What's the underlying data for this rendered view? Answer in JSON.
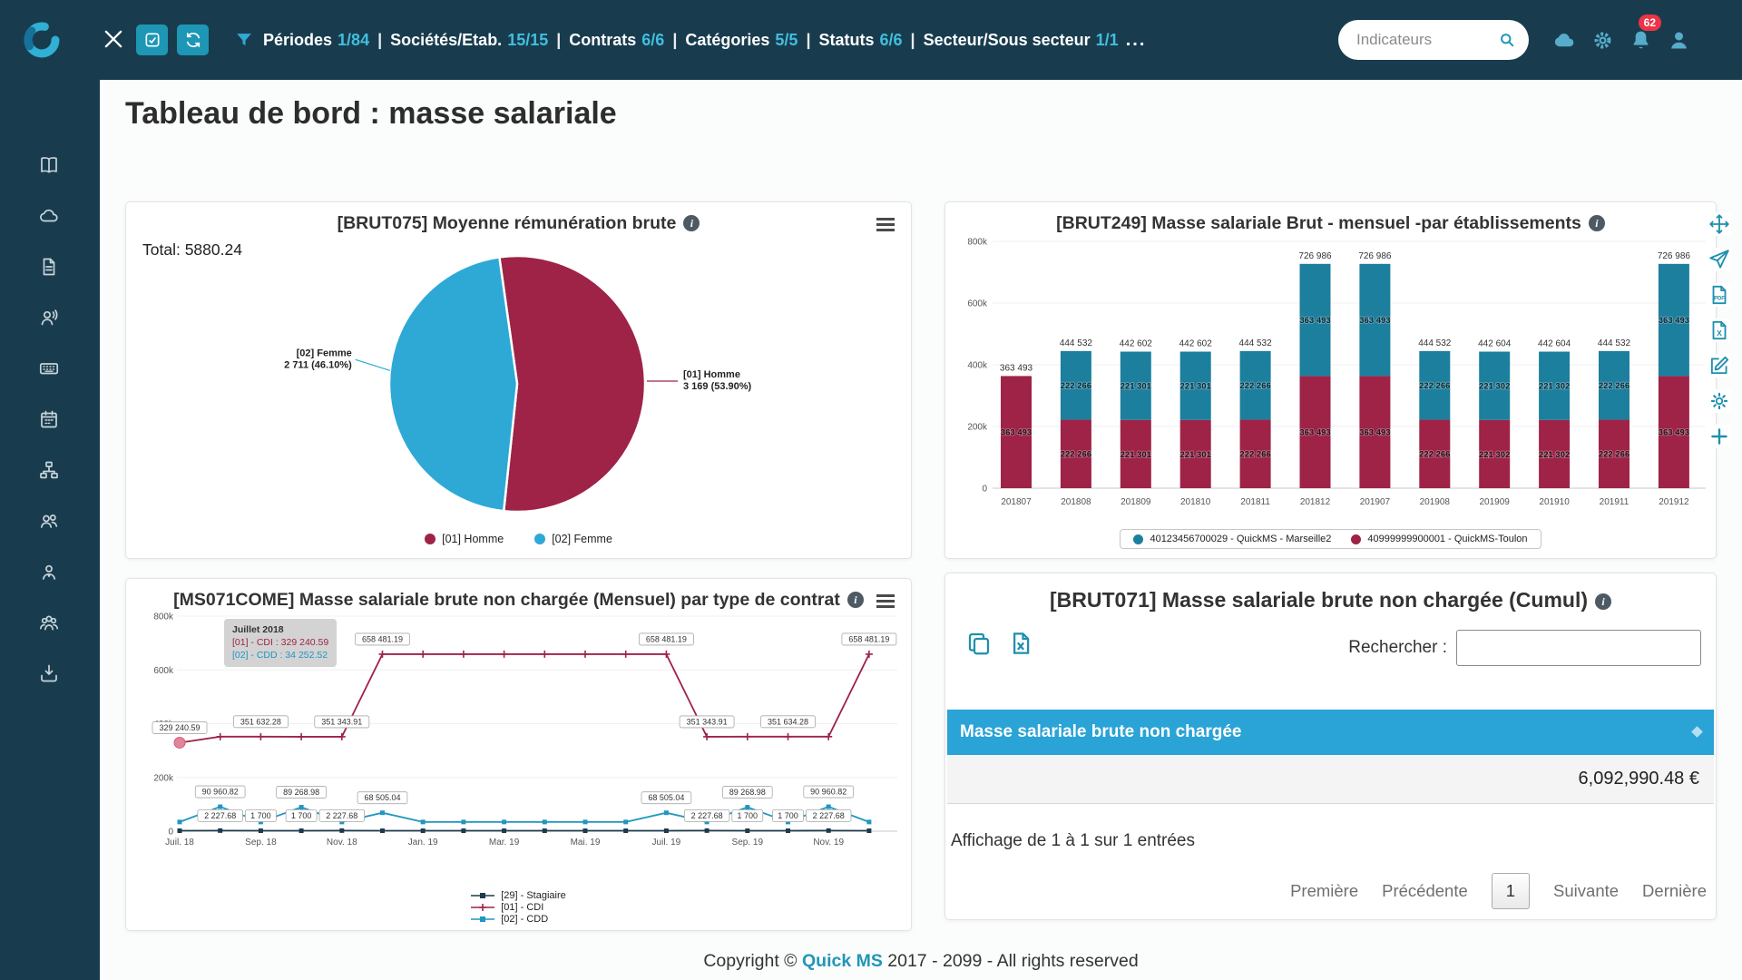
{
  "navbar": {
    "filters": [
      {
        "label": "Périodes",
        "value": "1/84"
      },
      {
        "label": "Sociétés/Etab.",
        "value": "15/15"
      },
      {
        "label": "Contrats",
        "value": "6/6"
      },
      {
        "label": "Catégories",
        "value": "5/5"
      },
      {
        "label": "Statuts",
        "value": "6/6"
      },
      {
        "label": "Secteur/Sous secteur",
        "value": "1/1"
      }
    ],
    "more_label": "...",
    "search_placeholder": "Indicateurs",
    "badge": "62"
  },
  "sidebar": {
    "icons": [
      "book-icon",
      "cloud-icon",
      "document-icon",
      "user-voice-icon",
      "keyboard-icon",
      "calendar-icon",
      "sitemap-icon",
      "users-icon",
      "user-tie-icon",
      "team-icon",
      "import-icon"
    ]
  },
  "toolbar": {
    "icons": [
      "arrows-move-icon",
      "send-icon",
      "file-pdf-icon",
      "file-excel-icon",
      "edit-icon",
      "gear-icon",
      "plus-icon"
    ]
  },
  "page": {
    "title": "Tableau de bord : masse salariale",
    "footer_prefix": "Copyright ©",
    "footer_brand": "Quick MS",
    "footer_suffix": "2017 - 2099 - All rights reserved"
  },
  "table_card": {
    "title": "[BRUT071] Masse salariale brute non chargée (Cumul)",
    "search_label": "Rechercher :",
    "column": "Masse salariale brute non chargée",
    "value": "6,092,990.48 €",
    "info": "Affichage de 1 à 1 sur 1 entrées",
    "pagination": {
      "first": "Première",
      "prev": "Précédente",
      "page": "1",
      "next": "Suivante",
      "last": "Dernière"
    }
  },
  "chart_data": [
    {
      "id": "pie",
      "type": "pie",
      "title": "[BRUT075] Moyenne rémunération brute",
      "total_label": "Total: 5880.24",
      "slices": [
        {
          "label": "[01] Homme",
          "value": 3169,
          "percent": "53.90%",
          "display": "3 169 (53.90%)",
          "color": "#9e2347"
        },
        {
          "label": "[02] Femme",
          "value": 2711,
          "percent": "46.10%",
          "display": "2 711 (46.10%)",
          "color": "#2ea9d6"
        }
      ],
      "legend": [
        "[01] Homme",
        "[02] Femme"
      ]
    },
    {
      "id": "bars",
      "type": "bar",
      "stacked": true,
      "title": "[BRUT249] Masse salariale Brut - mensuel -par établissements",
      "categories": [
        "201807",
        "201808",
        "201809",
        "201810",
        "201811",
        "201812",
        "201907",
        "201908",
        "201909",
        "201910",
        "201911",
        "201912"
      ],
      "series": [
        {
          "name": "40123456700029 - QuickMS - Marseille2",
          "color": "#1c7f9e",
          "values": [
            0,
            222266,
            221301,
            221301,
            222266,
            363493,
            363493,
            222266,
            221302,
            221302,
            222266,
            363493
          ],
          "labels": [
            "",
            "222 266",
            "221 301",
            "221 301",
            "222 266",
            "363 493",
            "363 493",
            "222 266",
            "221 302",
            "221 302",
            "222 266",
            "363 493"
          ]
        },
        {
          "name": "40999999900001 - QuickMS-Toulon",
          "color": "#9e2347",
          "values": [
            363493,
            222266,
            221301,
            221301,
            222266,
            363493,
            363493,
            222266,
            221302,
            221302,
            222266,
            363493
          ],
          "labels": [
            "363 493",
            "222 266",
            "221 301",
            "221 301",
            "222 266",
            "363 493",
            "363 493",
            "222 266",
            "221 302",
            "221 302",
            "222 266",
            "363 493"
          ]
        }
      ],
      "totals": [
        "363 493",
        "444 532",
        "442 602",
        "442 602",
        "444 532",
        "726 986",
        "726 986",
        "444 532",
        "442 604",
        "442 604",
        "444 532",
        "726 986"
      ],
      "ylim": [
        0,
        800000
      ],
      "yticks": [
        0,
        200000,
        400000,
        600000,
        800000
      ],
      "ytick_labels": [
        "0",
        "200k",
        "400k",
        "600k",
        "800k"
      ]
    },
    {
      "id": "lines",
      "type": "line",
      "title": "[MS071COME] Masse salariale brute non chargée (Mensuel) par type de contrat",
      "x_tick_labels": [
        "Juil. 18",
        "Sep. 18",
        "Nov. 18",
        "Jan. 19",
        "Mar. 19",
        "Mai. 19",
        "Juil. 19",
        "Sep. 19",
        "Nov. 19"
      ],
      "ylim": [
        0,
        800000
      ],
      "yticks": [
        0,
        200000,
        400000,
        600000,
        800000
      ],
      "ytick_labels": [
        "0",
        "200k",
        "400k",
        "600k",
        "800k"
      ],
      "series": [
        {
          "name": "[29] - Stagiaire",
          "color": "#1d3b4d",
          "marker": "square",
          "values": [
            1700,
            2227.68,
            1700,
            1700,
            2227.68,
            1700,
            1700,
            1700,
            1700,
            1700,
            1700,
            1700,
            1700,
            2227.68,
            1700,
            1700,
            2227.68,
            1700
          ]
        },
        {
          "name": "[01] - CDI",
          "color": "#9e2347",
          "marker": "plus",
          "values": [
            329240.59,
            351632.28,
            351632.28,
            351343.91,
            351343.91,
            658481.19,
            658481.19,
            658481.19,
            658481.19,
            658481.19,
            658481.19,
            658481.19,
            658481.19,
            351343.91,
            351634.28,
            351634.28,
            351634.28,
            658481.19
          ]
        },
        {
          "name": "[02] - CDD",
          "color": "#2196c0",
          "marker": "square",
          "values": [
            34252.52,
            90960.82,
            34252.52,
            89268.98,
            34252.52,
            68505.04,
            34252.52,
            34252.52,
            34252.52,
            34252.52,
            34252.52,
            34252.52,
            68505.04,
            34252.52,
            89268.98,
            34252.52,
            90960.82,
            34252.52
          ]
        }
      ],
      "point_labels": [
        {
          "series": 1,
          "i": 0,
          "text": "329 240.59"
        },
        {
          "series": 1,
          "i": 2,
          "text": "351 632.28"
        },
        {
          "series": 1,
          "i": 4,
          "text": "351 343.91"
        },
        {
          "series": 1,
          "i": 5,
          "text": "658 481.19"
        },
        {
          "series": 1,
          "i": 12,
          "text": "658 481.19"
        },
        {
          "series": 1,
          "i": 13,
          "text": "351 343.91"
        },
        {
          "series": 1,
          "i": 15,
          "text": "351 634.28"
        },
        {
          "series": 1,
          "i": 17,
          "text": "658 481.19"
        },
        {
          "series": 2,
          "i": 1,
          "text": "90 960.82"
        },
        {
          "series": 2,
          "i": 3,
          "text": "89 268.98"
        },
        {
          "series": 2,
          "i": 5,
          "text": "68 505.04"
        },
        {
          "series": 2,
          "i": 12,
          "text": "68 505.04"
        },
        {
          "series": 2,
          "i": 14,
          "text": "89 268.98"
        },
        {
          "series": 2,
          "i": 16,
          "text": "90 960.82"
        },
        {
          "series": 0,
          "i": 1,
          "text": "2 227.68"
        },
        {
          "series": 0,
          "i": 2,
          "text": "1 700"
        },
        {
          "series": 0,
          "i": 3,
          "text": "1 700"
        },
        {
          "series": 0,
          "i": 4,
          "text": "2 227.68"
        },
        {
          "series": 0,
          "i": 13,
          "text": "2 227.68"
        },
        {
          "series": 0,
          "i": 14,
          "text": "1 700"
        },
        {
          "series": 0,
          "i": 15,
          "text": "1 700"
        },
        {
          "series": 0,
          "i": 16,
          "text": "2 227.68"
        }
      ],
      "tooltip": {
        "title": "Juillet 2018",
        "rows": [
          {
            "text": "[01] - CDI : 329 240.59",
            "color": "#9e2347"
          },
          {
            "text": "[02] - CDD : 34 252.52",
            "color": "#2196c0"
          }
        ]
      },
      "highlight": {
        "series": 1,
        "i": 0
      }
    }
  ]
}
